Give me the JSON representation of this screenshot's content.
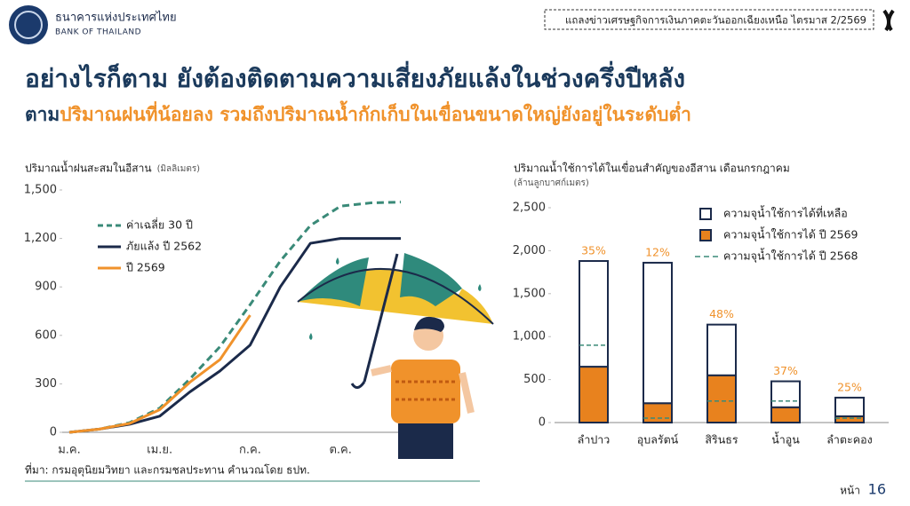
{
  "header": {
    "org_th": "ธนาคารแห่งประเทศไทย",
    "org_en": "BANK OF THAILAND",
    "event": "แถลงข่าวเศรษฐกิจการเงินภาคตะวันออกเฉียงเหนือ ไตรมาส 2/2569"
  },
  "title": "อย่างไรก็ตาม ยังต้องติดตามความเสี่ยงภัยแล้งในช่วงครึ่งปีหลัง",
  "subtitle": {
    "lead": "ตาม",
    "text": "ปริมาณฝนที่น้อยลง รวมถึงปริมาณน้ำกักเก็บในเขื่อนขนาดใหญ่ยังอยู่ในระดับต่ำ"
  },
  "chart_data": [
    {
      "type": "line",
      "title": "ปริมาณน้ำฝนสะสมในอีสาน",
      "unit": "(มิลลิเมตร)",
      "categories": [
        "ม.ค.",
        null,
        null,
        "เม.ย.",
        null,
        null,
        "ก.ค.",
        null,
        null,
        "ต.ค.",
        null,
        null
      ],
      "series": [
        {
          "name": "ค่าเฉลี่ย 30 ปี",
          "color": "#3a8a78",
          "dashed": true,
          "values": [
            0,
            20,
            60,
            150,
            330,
            530,
            790,
            1060,
            1280,
            1400,
            1420,
            1425
          ]
        },
        {
          "name": "ภัยแล้ง ปี 2562",
          "color": "#1b2a4a",
          "dashed": false,
          "values": [
            0,
            20,
            50,
            100,
            250,
            380,
            540,
            900,
            1170,
            1200,
            1200,
            1200
          ]
        },
        {
          "name": "ปี 2569",
          "color": "#f0922b",
          "dashed": false,
          "values": [
            0,
            20,
            55,
            140,
            310,
            450,
            725,
            null,
            null,
            null,
            null,
            null
          ]
        }
      ],
      "ylim": [
        0,
        1500
      ],
      "yticks": [
        0,
        300,
        600,
        900,
        {
          "value": 1200,
          "label": "1,200"
        },
        {
          "value": 1500,
          "label": "1,500"
        }
      ],
      "legend": "upper left"
    },
    {
      "type": "bar",
      "title": "ปริมาณน้ำใช้การได้ในเขื่อนสำคัญของอีสาน เดือนกรกฎาคม",
      "unit": "(ล้านลูกบาศก์เมตร)",
      "categories": [
        "ลำปาว",
        "อุบลรัตน์",
        "สิรินธร",
        "น้ำอูน",
        "ลำตะคอง"
      ],
      "stacked": true,
      "series": [
        {
          "name": "ความจุน้ำใช้การได้ที่เหลือ",
          "kind": "bar",
          "color": "#ffffff",
          "values": [
            1230,
            1635,
            590,
            302,
            217
          ]
        },
        {
          "name": "ความจุน้ำใช้การได้ ปี 2569",
          "kind": "bar",
          "color": "#e8821e",
          "values": [
            650,
            225,
            550,
            178,
            73
          ],
          "share_labels": [
            "35%",
            "12%",
            "48%",
            "37%",
            "25%"
          ]
        },
        {
          "name": "ความจุน้ำใช้การได้ ปี 2568",
          "kind": "marker",
          "color": "#3a8a78",
          "values": [
            900,
            52,
            250,
            250,
            50
          ]
        }
      ],
      "ylim": [
        0,
        2500
      ],
      "yticks": [
        0,
        500,
        {
          "value": 1000,
          "label": "1,000"
        },
        {
          "value": 1500,
          "label": "1,500"
        },
        {
          "value": 2000,
          "label": "2,000"
        },
        {
          "value": 2500,
          "label": "2,500"
        }
      ],
      "legend": "upper right"
    }
  ],
  "source": "ที่มา: กรมอุตุนิยมวิทยา และกรมชลประทาน คำนวณโดย ธปท.",
  "page": {
    "label": "หน้า",
    "number": "16"
  }
}
